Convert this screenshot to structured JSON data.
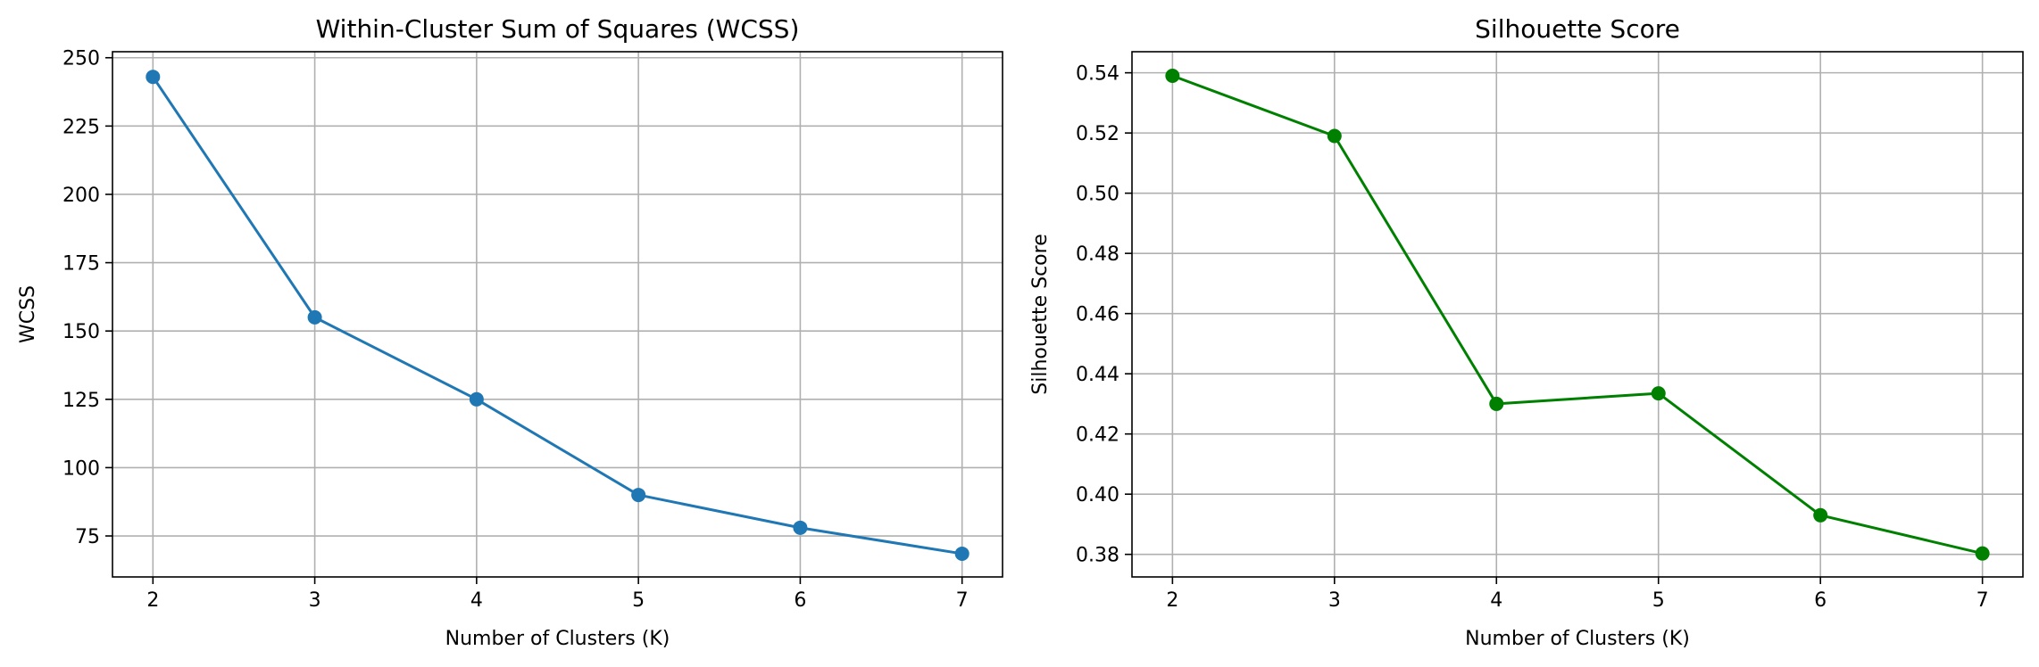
{
  "chart_data": [
    {
      "type": "line",
      "title": "Within-Cluster Sum of Squares (WCSS)",
      "xlabel": "Number of Clusters (K)",
      "ylabel": "WCSS",
      "x": [
        2,
        3,
        4,
        5,
        6,
        7
      ],
      "series": [
        {
          "values": [
            243,
            155,
            125,
            90,
            78,
            68.5
          ],
          "color": "#1f77b4",
          "marker": "circle"
        }
      ],
      "xlim": [
        1.75,
        7.25
      ],
      "ylim": [
        60,
        252.2
      ],
      "xticks": [
        "2",
        "3",
        "4",
        "5",
        "6",
        "7"
      ],
      "xtick_values": [
        2,
        3,
        4,
        5,
        6,
        7
      ],
      "yticks": [
        "75",
        "100",
        "125",
        "150",
        "175",
        "200",
        "225",
        "250"
      ],
      "ytick_values": [
        75,
        100,
        125,
        150,
        175,
        200,
        225,
        250
      ],
      "grid": true
    },
    {
      "type": "line",
      "title": "Silhouette Score",
      "xlabel": "Number of Clusters (K)",
      "ylabel": "Silhouette Score",
      "x": [
        2,
        3,
        4,
        5,
        6,
        7
      ],
      "series": [
        {
          "values": [
            0.539,
            0.519,
            0.43,
            0.4335,
            0.393,
            0.3803
          ],
          "color": "#008000",
          "marker": "circle"
        }
      ],
      "xlim": [
        1.75,
        7.25
      ],
      "ylim": [
        0.3725,
        0.547
      ],
      "xticks": [
        "2",
        "3",
        "4",
        "5",
        "6",
        "7"
      ],
      "xtick_values": [
        2,
        3,
        4,
        5,
        6,
        7
      ],
      "yticks": [
        "0.38",
        "0.40",
        "0.42",
        "0.44",
        "0.46",
        "0.48",
        "0.50",
        "0.52",
        "0.54"
      ],
      "ytick_values": [
        0.38,
        0.4,
        0.42,
        0.44,
        0.46,
        0.48,
        0.5,
        0.52,
        0.54
      ],
      "grid": true
    }
  ]
}
